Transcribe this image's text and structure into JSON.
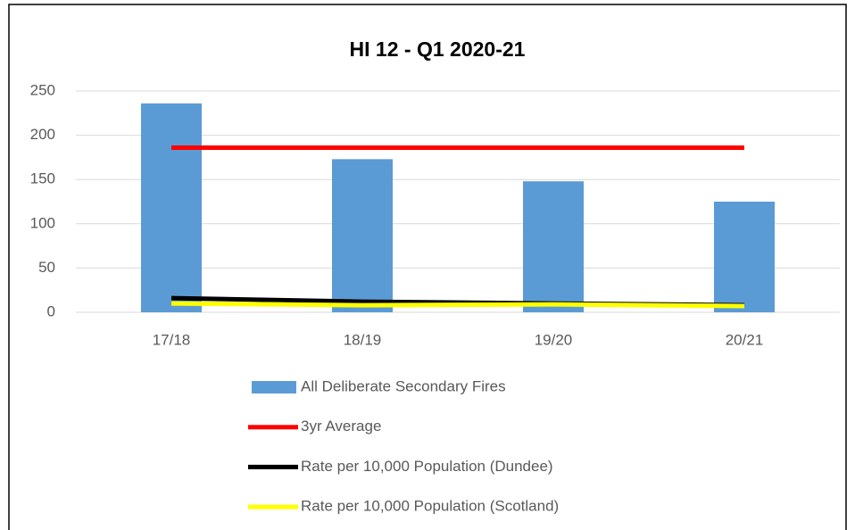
{
  "chart_data": {
    "type": "bar",
    "title": "HI 12 - Q1 2020-21",
    "categories": [
      "17/18",
      "18/19",
      "19/20",
      "20/21"
    ],
    "series": [
      {
        "name": "All Deliberate Secondary Fires",
        "type": "bar",
        "color": "#5b9bd5",
        "values": [
          236,
          173,
          148,
          125
        ]
      },
      {
        "name": "3yr Average",
        "type": "line",
        "color": "#ff0000",
        "values": [
          186,
          186,
          186,
          186
        ]
      },
      {
        "name": "Rate per 10,000 Population (Dundee)",
        "type": "line",
        "color": "#000000",
        "values": [
          16,
          12,
          10,
          8
        ]
      },
      {
        "name": "Rate per 10,000 Population (Scotland)",
        "type": "line",
        "color": "#ffff00",
        "values": [
          10,
          8,
          9,
          7
        ]
      }
    ],
    "ylim": [
      0,
      250
    ],
    "yticks": [
      0,
      50,
      100,
      150,
      200,
      250
    ],
    "grid": true,
    "legend": "bottom"
  }
}
